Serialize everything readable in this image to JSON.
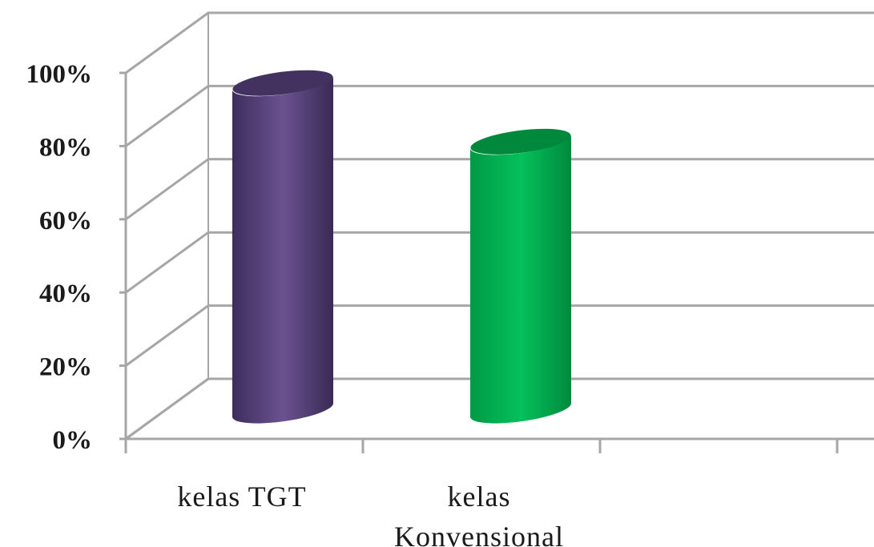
{
  "chart_data": {
    "type": "bar",
    "style": "3d-cylinder",
    "categories": [
      "kelas TGT",
      "kelas Konvensional"
    ],
    "category_label_lines": [
      [
        "kelas TGT"
      ],
      [
        "kelas",
        "Konvensional"
      ]
    ],
    "series": [
      {
        "values": [
          90,
          74
        ]
      }
    ],
    "bar_colors": [
      "#5b4580",
      "#00b050"
    ],
    "ylim": [
      0,
      100
    ],
    "yticks": [
      0,
      20,
      40,
      60,
      80,
      100
    ],
    "ytick_labels": [
      "0%",
      "20%",
      "40%",
      "60%",
      "80%",
      "100%"
    ],
    "y_unit": "%",
    "grid": true,
    "legend": "none",
    "title": "",
    "xlabel": "",
    "ylabel": ""
  }
}
